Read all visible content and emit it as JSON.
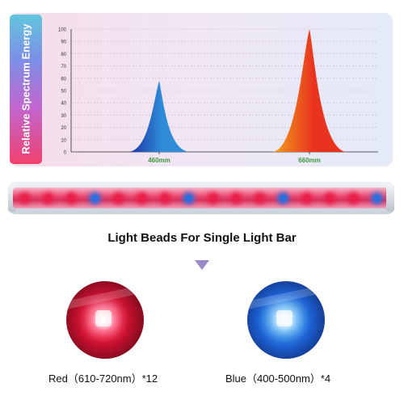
{
  "chart_data": {
    "type": "area",
    "ylabel": "Relative Spectrum Energy",
    "ylim": [
      0,
      100
    ],
    "yticks": [
      0,
      10,
      20,
      30,
      40,
      50,
      60,
      70,
      80,
      90,
      100
    ],
    "xticks": [
      "460mm",
      "660mm"
    ],
    "series": [
      {
        "peak_x": "460mm",
        "peak_value": 58,
        "colors": [
          "#1a2fa3",
          "#2f8dd8"
        ]
      },
      {
        "peak_x": "660mm",
        "peak_value": 100,
        "colors": [
          "#f4a21c",
          "#e8341f"
        ]
      }
    ],
    "grid": true
  },
  "section_title": "Light Beads For Single Light Bar",
  "beads": {
    "red": {
      "label": "Red（610-720nm）*12",
      "count": 12,
      "color": "#e8204a"
    },
    "blue": {
      "label": "Blue（400-500nm）*4",
      "count": 4,
      "color": "#2e6fe0"
    }
  },
  "icons": {
    "arrow": "triangle-down"
  }
}
